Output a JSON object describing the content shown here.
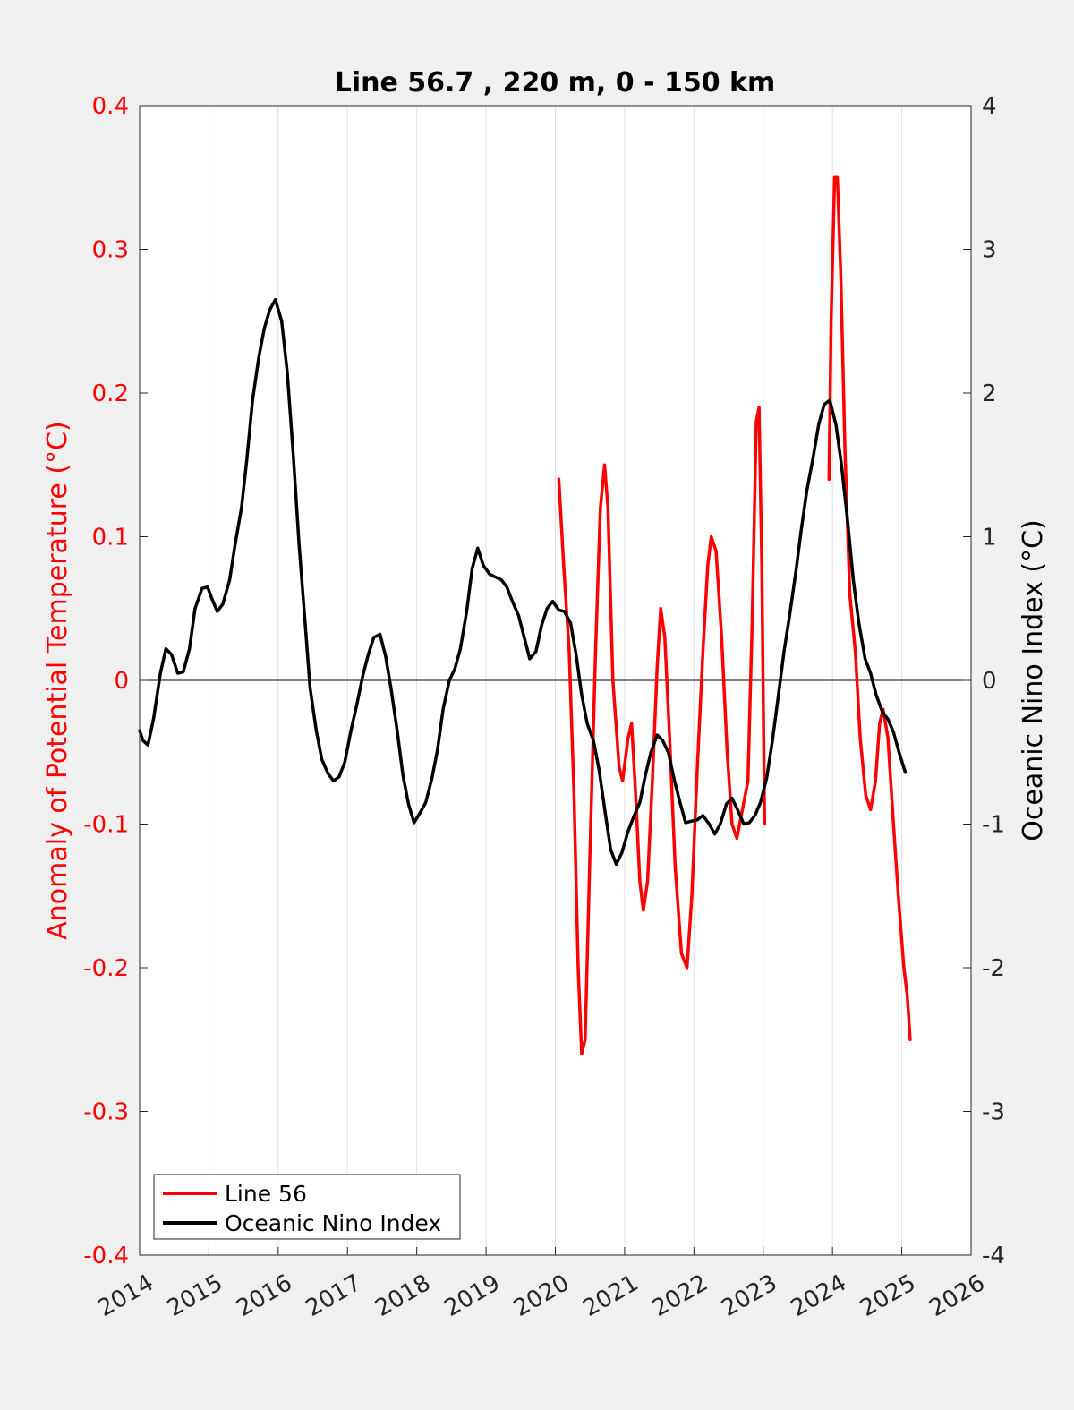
{
  "chart_data": {
    "type": "line",
    "title": "Line 56.7 , 220 m, 0 - 150 km",
    "xlabel": "",
    "ylabel_left": "Anomaly of Potential Temperature (°C)",
    "ylabel_right": "Oceanic Nino Index (°C)",
    "xlim": [
      2014,
      2026
    ],
    "ylim_left": [
      -0.4,
      0.4
    ],
    "ylim_right": [
      -4,
      4
    ],
    "x_ticks": [
      "2014",
      "2015",
      "2016",
      "2017",
      "2018",
      "2019",
      "2020",
      "2021",
      "2022",
      "2023",
      "2024",
      "2025",
      "2026"
    ],
    "y_ticks_left": [
      "-0.4",
      "-0.3",
      "-0.2",
      "-0.1",
      "0",
      "0.1",
      "0.2",
      "0.3",
      "0.4"
    ],
    "y_ticks_right": [
      "-4",
      "-3",
      "-2",
      "-1",
      "0",
      "1",
      "2",
      "3",
      "4"
    ],
    "vertical_grid": true,
    "zero_line": true,
    "legend_position": "bottom-left",
    "colors": {
      "left_axis": "#ff0000",
      "line56": "#ff0000",
      "oni": "#000000",
      "background": "#f0f0f0",
      "plot_area": "#ffffff",
      "grid": "#e0e0e0"
    },
    "series": [
      {
        "name": "Line 56",
        "axis": "left",
        "segments": [
          [
            [
              2020.05,
              0.14
            ],
            [
              2020.12,
              0.08
            ],
            [
              2020.2,
              0.02
            ],
            [
              2020.27,
              -0.08
            ],
            [
              2020.33,
              -0.2
            ],
            [
              2020.38,
              -0.26
            ],
            [
              2020.43,
              -0.25
            ],
            [
              2020.5,
              -0.12
            ],
            [
              2020.58,
              0.02
            ],
            [
              2020.65,
              0.12
            ],
            [
              2020.71,
              0.15
            ],
            [
              2020.76,
              0.12
            ],
            [
              2020.83,
              0.0
            ],
            [
              2020.92,
              -0.06
            ],
            [
              2020.97,
              -0.07
            ],
            [
              2021.05,
              -0.04
            ],
            [
              2021.1,
              -0.03
            ],
            [
              2021.16,
              -0.08
            ],
            [
              2021.22,
              -0.14
            ],
            [
              2021.27,
              -0.16
            ],
            [
              2021.33,
              -0.14
            ],
            [
              2021.4,
              -0.07
            ],
            [
              2021.47,
              0.01
            ],
            [
              2021.52,
              0.05
            ],
            [
              2021.58,
              0.03
            ],
            [
              2021.65,
              -0.04
            ],
            [
              2021.73,
              -0.13
            ],
            [
              2021.82,
              -0.19
            ],
            [
              2021.9,
              -0.2
            ],
            [
              2021.97,
              -0.15
            ],
            [
              2022.05,
              -0.06
            ],
            [
              2022.13,
              0.02
            ],
            [
              2022.2,
              0.08
            ],
            [
              2022.25,
              0.1
            ],
            [
              2022.32,
              0.09
            ],
            [
              2022.4,
              0.03
            ],
            [
              2022.48,
              -0.05
            ],
            [
              2022.55,
              -0.1
            ],
            [
              2022.62,
              -0.11
            ],
            [
              2022.7,
              -0.09
            ],
            [
              2022.78,
              -0.07
            ],
            [
              2022.84,
              0.04
            ],
            [
              2022.9,
              0.18
            ],
            [
              2022.94,
              0.19
            ],
            [
              2022.98,
              0.08
            ],
            [
              2023.02,
              -0.1
            ]
          ],
          [
            [
              2023.95,
              0.14
            ],
            [
              2023.98,
              0.25
            ],
            [
              2024.03,
              0.35
            ],
            [
              2024.07,
              0.35
            ],
            [
              2024.12,
              0.28
            ],
            [
              2024.18,
              0.16
            ],
            [
              2024.25,
              0.06
            ],
            [
              2024.33,
              0.02
            ],
            [
              2024.4,
              -0.04
            ],
            [
              2024.48,
              -0.08
            ],
            [
              2024.55,
              -0.09
            ],
            [
              2024.62,
              -0.07
            ],
            [
              2024.68,
              -0.03
            ],
            [
              2024.73,
              -0.02
            ],
            [
              2024.8,
              -0.04
            ],
            [
              2024.88,
              -0.1
            ],
            [
              2024.95,
              -0.15
            ],
            [
              2025.03,
              -0.2
            ],
            [
              2025.08,
              -0.22
            ],
            [
              2025.12,
              -0.25
            ]
          ]
        ]
      },
      {
        "name": "Oceanic Nino Index",
        "axis": "right",
        "points": [
          [
            2014.0,
            -0.35
          ],
          [
            2014.05,
            -0.42
          ],
          [
            2014.12,
            -0.45
          ],
          [
            2014.2,
            -0.27
          ],
          [
            2014.3,
            0.05
          ],
          [
            2014.38,
            0.22
          ],
          [
            2014.46,
            0.18
          ],
          [
            2014.55,
            0.05
          ],
          [
            2014.63,
            0.06
          ],
          [
            2014.72,
            0.22
          ],
          [
            2014.8,
            0.5
          ],
          [
            2014.9,
            0.64
          ],
          [
            2014.98,
            0.65
          ],
          [
            2015.05,
            0.56
          ],
          [
            2015.12,
            0.48
          ],
          [
            2015.2,
            0.53
          ],
          [
            2015.3,
            0.7
          ],
          [
            2015.38,
            0.95
          ],
          [
            2015.47,
            1.2
          ],
          [
            2015.55,
            1.55
          ],
          [
            2015.63,
            1.95
          ],
          [
            2015.72,
            2.25
          ],
          [
            2015.8,
            2.45
          ],
          [
            2015.88,
            2.58
          ],
          [
            2015.96,
            2.65
          ],
          [
            2016.05,
            2.5
          ],
          [
            2016.13,
            2.15
          ],
          [
            2016.22,
            1.55
          ],
          [
            2016.3,
            0.95
          ],
          [
            2016.38,
            0.45
          ],
          [
            2016.46,
            -0.05
          ],
          [
            2016.55,
            -0.35
          ],
          [
            2016.63,
            -0.55
          ],
          [
            2016.72,
            -0.65
          ],
          [
            2016.8,
            -0.7
          ],
          [
            2016.88,
            -0.67
          ],
          [
            2016.96,
            -0.57
          ],
          [
            2017.05,
            -0.35
          ],
          [
            2017.13,
            -0.18
          ],
          [
            2017.22,
            0.03
          ],
          [
            2017.3,
            0.18
          ],
          [
            2017.38,
            0.3
          ],
          [
            2017.47,
            0.32
          ],
          [
            2017.55,
            0.17
          ],
          [
            2017.63,
            -0.06
          ],
          [
            2017.72,
            -0.36
          ],
          [
            2017.8,
            -0.66
          ],
          [
            2017.88,
            -0.86
          ],
          [
            2017.96,
            -0.99
          ],
          [
            2018.05,
            -0.92
          ],
          [
            2018.13,
            -0.85
          ],
          [
            2018.22,
            -0.68
          ],
          [
            2018.3,
            -0.48
          ],
          [
            2018.38,
            -0.2
          ],
          [
            2018.47,
            0.0
          ],
          [
            2018.55,
            0.08
          ],
          [
            2018.63,
            0.22
          ],
          [
            2018.72,
            0.48
          ],
          [
            2018.8,
            0.78
          ],
          [
            2018.88,
            0.92
          ],
          [
            2018.96,
            0.8
          ],
          [
            2019.05,
            0.74
          ],
          [
            2019.13,
            0.72
          ],
          [
            2019.22,
            0.7
          ],
          [
            2019.3,
            0.65
          ],
          [
            2019.38,
            0.55
          ],
          [
            2019.47,
            0.45
          ],
          [
            2019.55,
            0.3
          ],
          [
            2019.63,
            0.15
          ],
          [
            2019.72,
            0.2
          ],
          [
            2019.8,
            0.38
          ],
          [
            2019.88,
            0.5
          ],
          [
            2019.96,
            0.55
          ],
          [
            2020.05,
            0.49
          ],
          [
            2020.13,
            0.48
          ],
          [
            2020.22,
            0.4
          ],
          [
            2020.3,
            0.18
          ],
          [
            2020.38,
            -0.1
          ],
          [
            2020.46,
            -0.3
          ],
          [
            2020.55,
            -0.42
          ],
          [
            2020.63,
            -0.62
          ],
          [
            2020.72,
            -0.92
          ],
          [
            2020.8,
            -1.18
          ],
          [
            2020.88,
            -1.28
          ],
          [
            2020.96,
            -1.2
          ],
          [
            2021.05,
            -1.05
          ],
          [
            2021.13,
            -0.95
          ],
          [
            2021.22,
            -0.85
          ],
          [
            2021.3,
            -0.66
          ],
          [
            2021.38,
            -0.5
          ],
          [
            2021.47,
            -0.38
          ],
          [
            2021.55,
            -0.42
          ],
          [
            2021.63,
            -0.5
          ],
          [
            2021.72,
            -0.7
          ],
          [
            2021.8,
            -0.85
          ],
          [
            2021.88,
            -0.99
          ],
          [
            2021.96,
            -0.98
          ],
          [
            2022.05,
            -0.97
          ],
          [
            2022.13,
            -0.94
          ],
          [
            2022.22,
            -1.0
          ],
          [
            2022.3,
            -1.07
          ],
          [
            2022.38,
            -1.0
          ],
          [
            2022.47,
            -0.86
          ],
          [
            2022.55,
            -0.82
          ],
          [
            2022.63,
            -0.9
          ],
          [
            2022.72,
            -1.0
          ],
          [
            2022.8,
            -0.99
          ],
          [
            2022.88,
            -0.94
          ],
          [
            2022.96,
            -0.85
          ],
          [
            2023.05,
            -0.68
          ],
          [
            2023.13,
            -0.43
          ],
          [
            2023.22,
            -0.1
          ],
          [
            2023.3,
            0.2
          ],
          [
            2023.38,
            0.45
          ],
          [
            2023.47,
            0.75
          ],
          [
            2023.55,
            1.05
          ],
          [
            2023.63,
            1.32
          ],
          [
            2023.72,
            1.55
          ],
          [
            2023.8,
            1.78
          ],
          [
            2023.88,
            1.92
          ],
          [
            2023.96,
            1.95
          ],
          [
            2024.05,
            1.78
          ],
          [
            2024.13,
            1.5
          ],
          [
            2024.22,
            1.1
          ],
          [
            2024.3,
            0.7
          ],
          [
            2024.38,
            0.4
          ],
          [
            2024.47,
            0.15
          ],
          [
            2024.55,
            0.05
          ],
          [
            2024.63,
            -0.1
          ],
          [
            2024.72,
            -0.22
          ],
          [
            2024.8,
            -0.27
          ],
          [
            2024.88,
            -0.36
          ],
          [
            2024.96,
            -0.5
          ],
          [
            2025.05,
            -0.64
          ]
        ]
      }
    ]
  }
}
